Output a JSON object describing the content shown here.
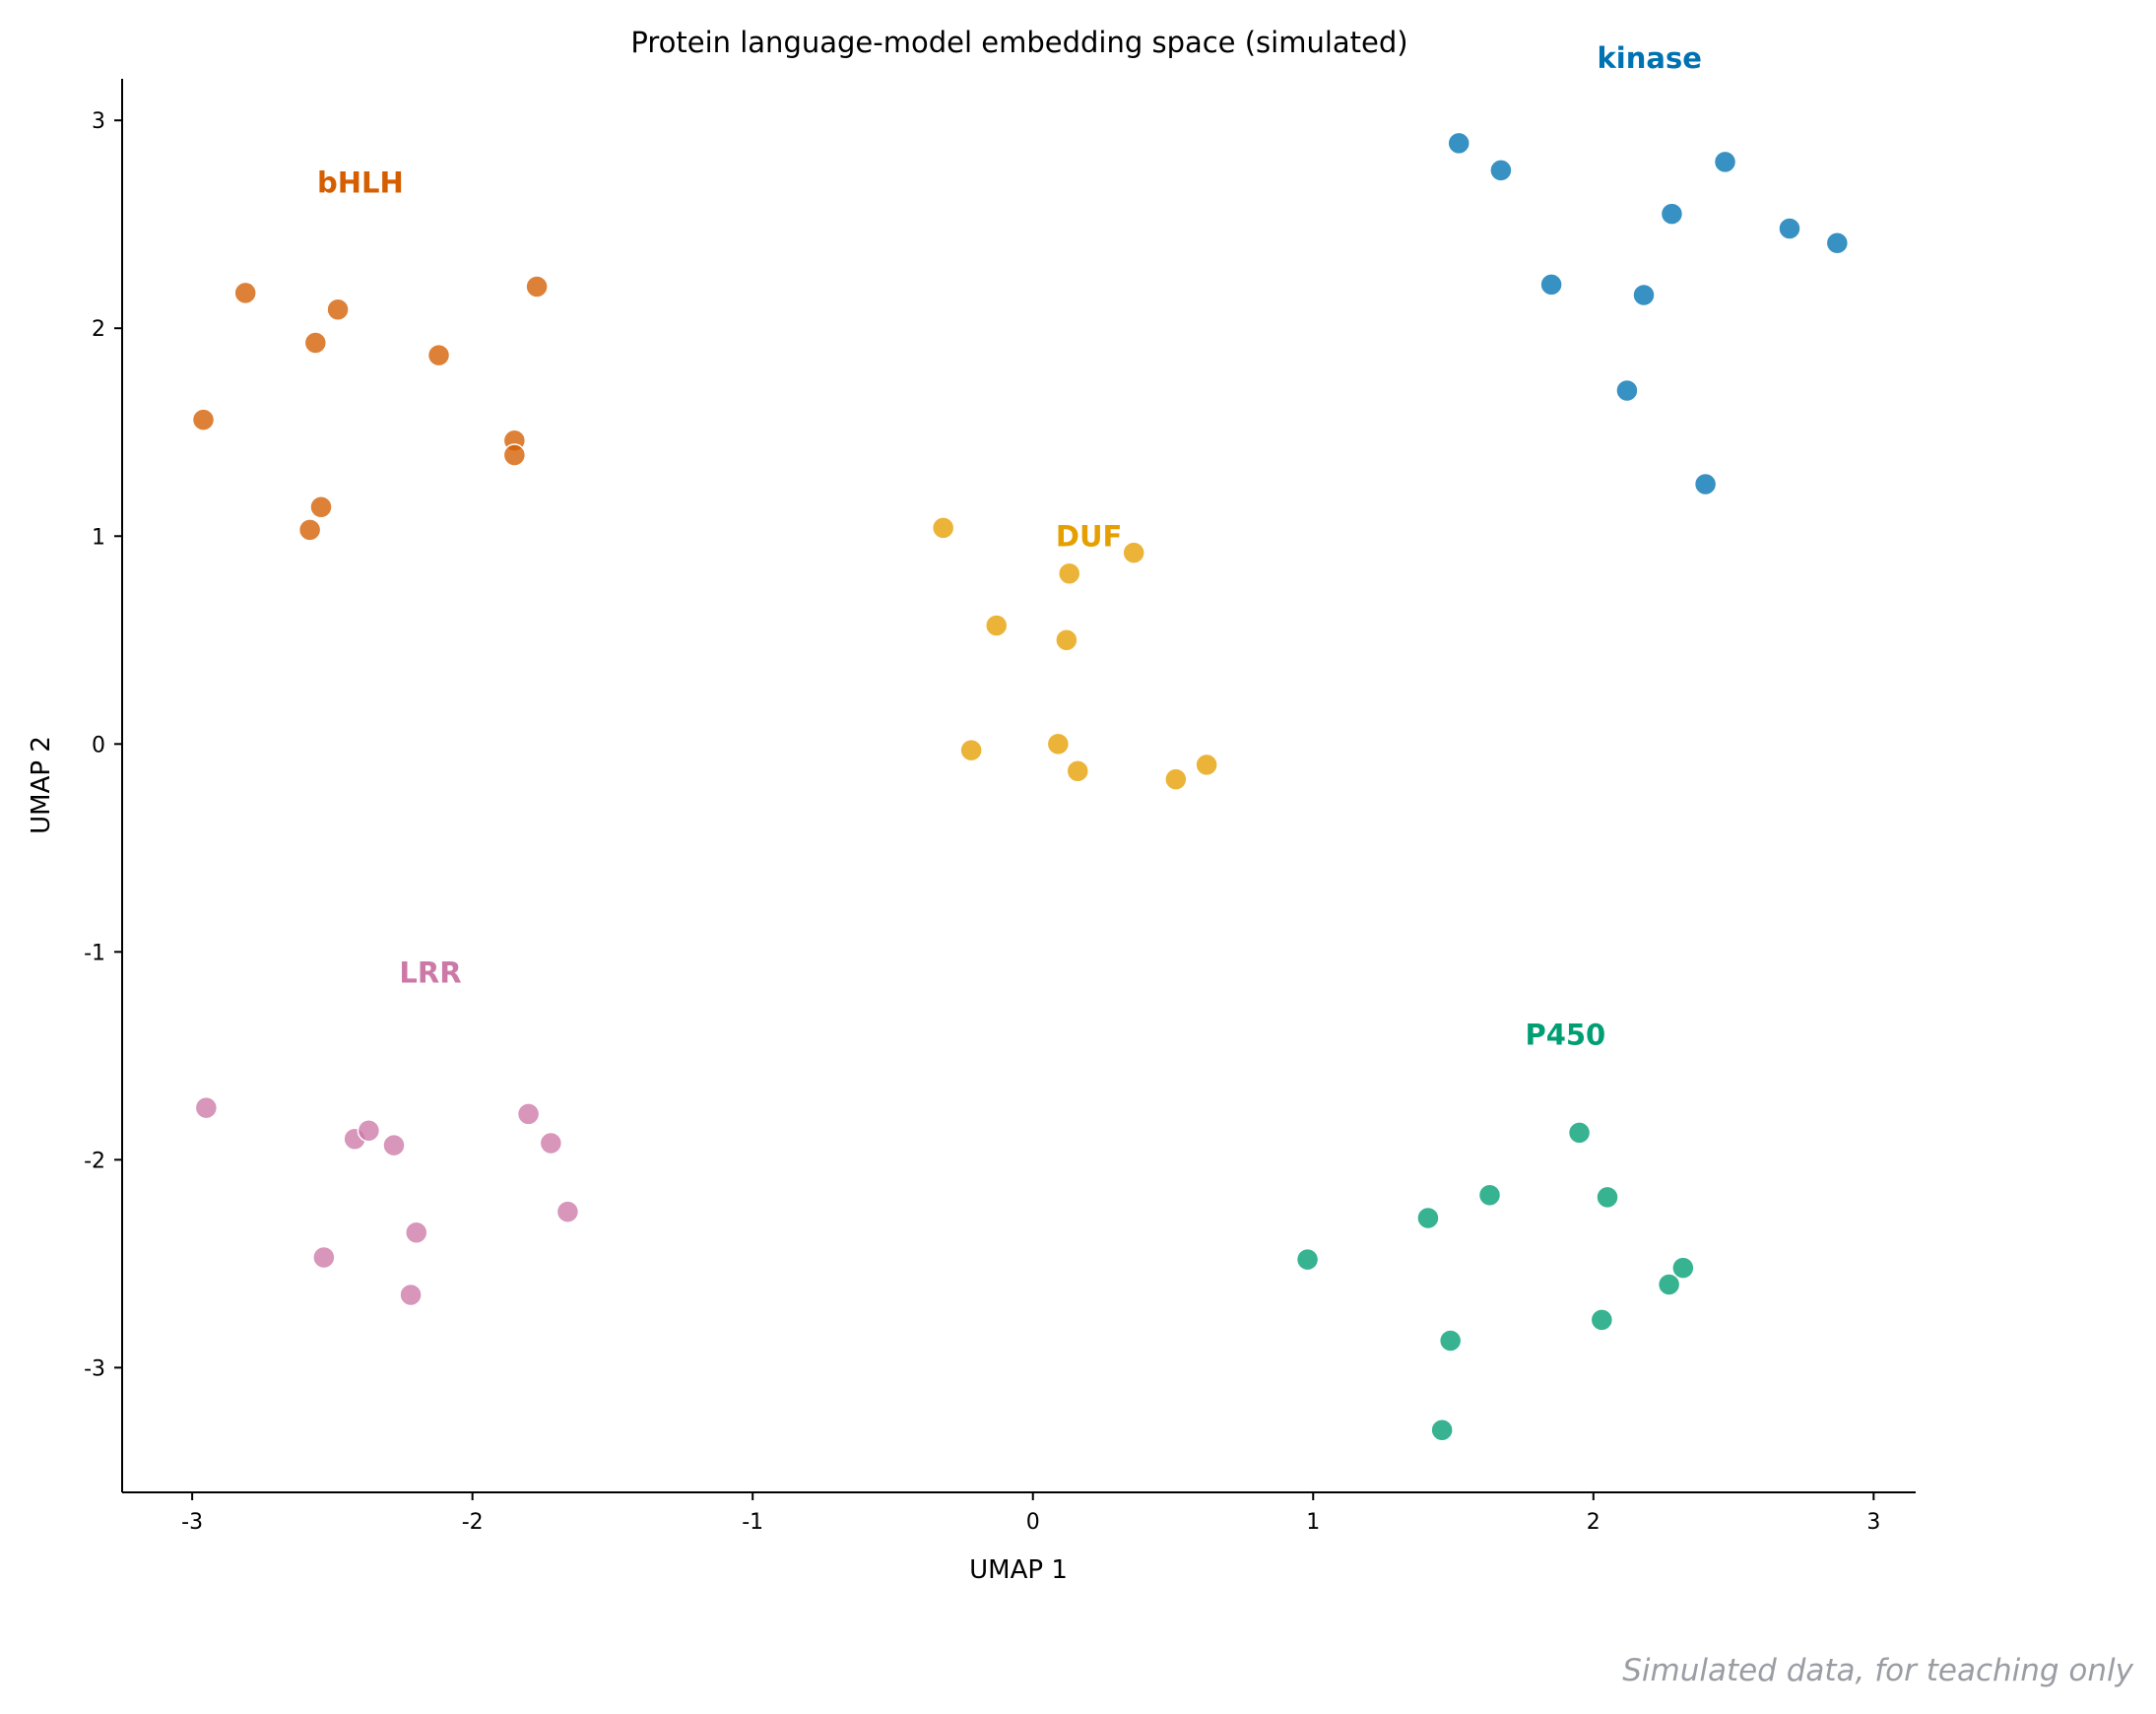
{
  "chart_data": {
    "type": "scatter",
    "title": "Protein language-model embedding space (simulated)",
    "xlabel": "UMAP 1",
    "ylabel": "UMAP 2",
    "xlim": [
      -3.25,
      3.15
    ],
    "ylim": [
      -3.6,
      3.2
    ],
    "xticks": [
      -3,
      -2,
      -1,
      0,
      1,
      2,
      3
    ],
    "xtick_labels": [
      "-3",
      "-2",
      "-1",
      "0",
      "1",
      "2",
      "3"
    ],
    "yticks": [
      -3,
      -2,
      -1,
      0,
      1,
      2,
      3
    ],
    "ytick_labels": [
      "-3",
      "-2",
      "-1",
      "0",
      "1",
      "2",
      "3"
    ],
    "grid": false,
    "annotation": "Simulated data, for teaching only",
    "series": [
      {
        "label": "kinase",
        "color": "#0072b2",
        "label_at": [
          2.2,
          3.3
        ],
        "x": [
          1.52,
          1.67,
          1.85,
          2.12,
          2.18,
          2.28,
          2.4,
          2.47,
          2.7,
          2.87
        ],
        "y": [
          2.89,
          2.76,
          2.21,
          1.7,
          2.16,
          2.55,
          1.25,
          2.8,
          2.48,
          2.41
        ]
      },
      {
        "label": "bHLH",
        "color": "#d55e00",
        "label_at": [
          -2.4,
          2.7
        ],
        "x": [
          -2.96,
          -2.81,
          -2.58,
          -2.48,
          -2.54,
          -2.56,
          -2.12,
          -1.85,
          -1.85,
          -1.77
        ],
        "y": [
          1.56,
          2.17,
          1.03,
          2.09,
          1.14,
          1.93,
          1.87,
          1.46,
          1.39,
          2.2
        ]
      },
      {
        "label": "DUF",
        "color": "#e69f00",
        "label_at": [
          0.2,
          1.0
        ],
        "x": [
          -0.32,
          -0.13,
          -0.22,
          0.09,
          0.12,
          0.13,
          0.16,
          0.36,
          0.51,
          0.62
        ],
        "y": [
          1.04,
          0.57,
          -0.03,
          0.0,
          0.5,
          0.82,
          -0.13,
          0.92,
          -0.17,
          -0.1
        ]
      },
      {
        "label": "LRR",
        "color": "#cc79a7",
        "label_at": [
          -2.15,
          -1.1
        ],
        "x": [
          -2.95,
          -2.53,
          -2.42,
          -2.37,
          -2.28,
          -2.2,
          -2.22,
          -1.8,
          -1.72,
          -1.66
        ],
        "y": [
          -1.75,
          -2.47,
          -1.9,
          -1.86,
          -1.93,
          -2.35,
          -2.65,
          -1.78,
          -1.92,
          -2.25
        ]
      },
      {
        "label": "P450",
        "color": "#009e73",
        "label_at": [
          1.9,
          -1.4
        ],
        "x": [
          0.98,
          1.41,
          1.46,
          1.49,
          1.63,
          1.95,
          2.03,
          2.05,
          2.27,
          2.32
        ],
        "y": [
          -2.48,
          -2.28,
          -3.3,
          -2.87,
          -2.17,
          -1.87,
          -2.77,
          -2.18,
          -2.6,
          -2.52
        ]
      }
    ]
  }
}
